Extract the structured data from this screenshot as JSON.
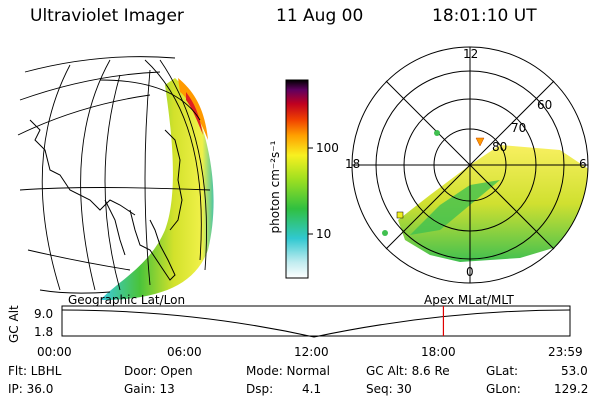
{
  "header": {
    "title": "Ultraviolet Imager",
    "date": "11 Aug 00",
    "time": "18:01:10 UT"
  },
  "colorbar": {
    "label": "photon cm⁻²s⁻¹",
    "ticks": [
      "100",
      "10"
    ]
  },
  "polar_plot": {
    "mlt_labels": [
      "12",
      "18",
      "6",
      "0"
    ],
    "lat_labels": [
      "60",
      "70",
      "80"
    ]
  },
  "left_panel_label": "Geographic Lat/Lon",
  "right_panel_label": "Apex MLat/MLT",
  "timeline": {
    "y_axis_title": "GC Alt",
    "y_ticks": [
      "9.0",
      "1.8"
    ],
    "x_ticks": [
      "00:00",
      "06:00",
      "12:00",
      "18:00",
      "23:59"
    ],
    "marker_time_hours": 18.02
  },
  "info": {
    "flt": "Flt: LBHL",
    "ip": "IP: 36.0",
    "door": "Door: Open",
    "gain": "Gain: 13",
    "mode": "Mode: Normal",
    "dsp": "Dsp:",
    "dsp_value": "4.1",
    "gc_alt": "GC Alt: 8.6 Re",
    "seq": "Seq: 30",
    "glat": "GLat:",
    "glat_value": "53.0",
    "glon": "GLon:",
    "glon_value": "129.2"
  },
  "colors": {
    "marker": "#e00000"
  }
}
